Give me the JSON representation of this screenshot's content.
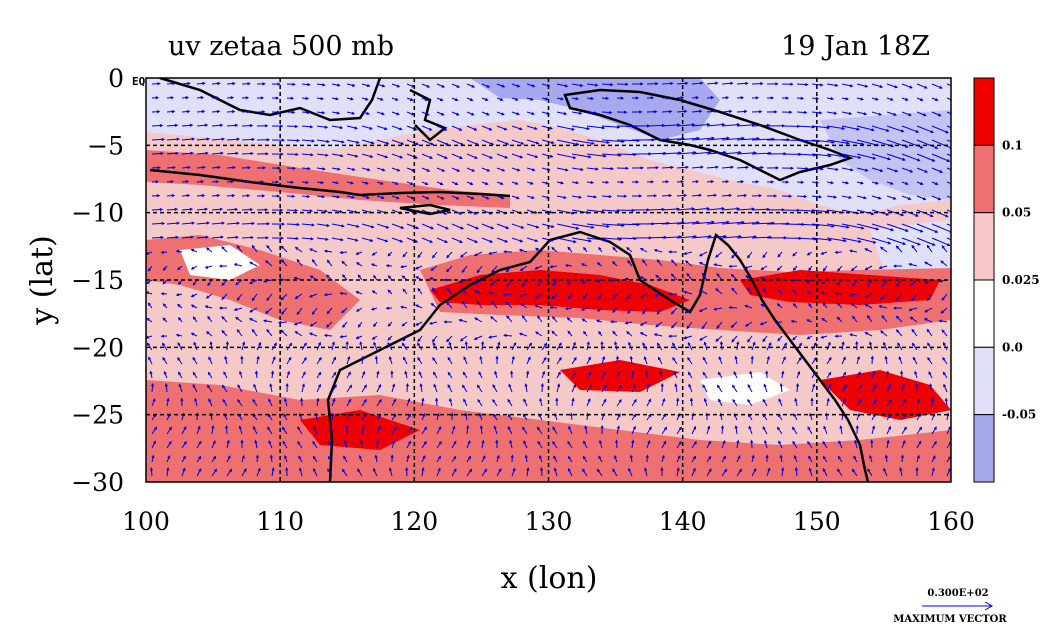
{
  "chart_data": {
    "type": "heatmap",
    "title_left": "uv zetaa 500 mb",
    "title_right": "19 Jan 18Z",
    "xlabel": "x (lon)",
    "ylabel": "y (lat)",
    "xlim": [
      100,
      160
    ],
    "ylim": [
      -30,
      0
    ],
    "x_ticks": [
      "100",
      "110",
      "120",
      "130",
      "140",
      "150",
      "160"
    ],
    "y_ticks": [
      "0",
      "−5",
      "−10",
      "−15",
      "−20",
      "−25",
      "−30"
    ],
    "eq_label": "EQ",
    "grid": true,
    "colorbar": {
      "levels": [
        "0.1",
        "0.05",
        "0.025",
        "0.0",
        "-0.05"
      ],
      "colors": [
        "#ee0000",
        "#ee7070",
        "#f8c8c8",
        "#ffffff",
        "#e0e0f8",
        "#a8a8ee"
      ]
    },
    "vector_legend": {
      "value": "0.300E+02",
      "label": "MAXIMUM VECTOR"
    },
    "colors": {
      "land_outline": "#000000",
      "contour": "#dd0000",
      "vector": "#0000dd"
    }
  }
}
